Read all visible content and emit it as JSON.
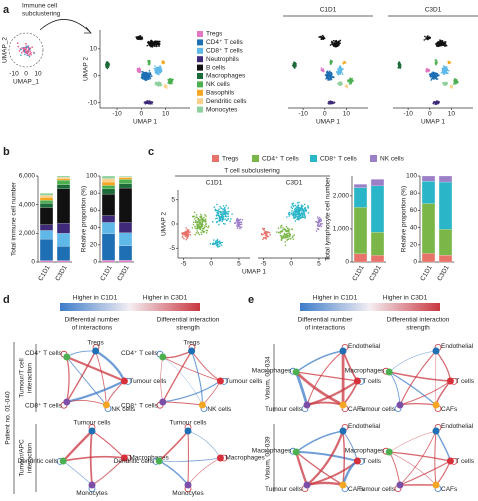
{
  "panel_labels": [
    "a",
    "b",
    "c",
    "d",
    "e"
  ],
  "panel_a": {
    "inset": {
      "title": [
        "Immune cell",
        "subclustering"
      ],
      "xlabel": "UMAP_1",
      "ylabel": "UMAP_2",
      "xticks": [
        -10,
        0,
        10
      ]
    },
    "umap": {
      "xlabel": "UMAP 1",
      "ylabel": "UMAP 2",
      "xlim": [
        -17,
        20
      ],
      "ylim": [
        -12,
        17
      ],
      "xticks": [
        -10,
        0,
        10
      ],
      "yticks": [
        -10,
        0,
        10
      ]
    },
    "split": [
      {
        "title": "C1D1",
        "xlabel": "UMAP 1",
        "xlim": [
          -17,
          20
        ],
        "ylim": [
          -12,
          17
        ],
        "xticks": [
          -10,
          0,
          10
        ]
      },
      {
        "title": "C3D1",
        "xlabel": "UMAP 1",
        "xlim": [
          -17,
          20
        ],
        "ylim": [
          -12,
          17
        ],
        "xticks": [
          -10,
          0,
          10
        ]
      }
    ]
  },
  "chart_data": [
    {
      "type": "bar",
      "stacked": true,
      "ylabel": "Total immune cell number",
      "categories": [
        "C1D1",
        "C3D1"
      ],
      "ylim": [
        0,
        6000
      ],
      "yticks": [
        0,
        {
          "value": 2000,
          "label": "2,000"
        },
        {
          "value": 4000,
          "label": "4,000"
        },
        {
          "value": 6000,
          "label": "6,000"
        }
      ],
      "series": [
        {
          "name": "Tregs",
          "color": "#e377c2",
          "values": [
            100,
            100
          ]
        },
        {
          "name": "CD4⁺ T cells",
          "color": "#1f6fb4",
          "values": [
            1500,
            1000
          ]
        },
        {
          "name": "CD8⁺ T cells",
          "color": "#5fb8e8",
          "values": [
            600,
            900
          ]
        },
        {
          "name": "Neutrophils",
          "color": "#3f2a7a",
          "values": [
            400,
            700
          ]
        },
        {
          "name": "B cells",
          "color": "#111111",
          "values": [
            1200,
            2400
          ]
        },
        {
          "name": "Macrophages",
          "color": "#1e6b3a",
          "values": [
            300,
            300
          ]
        },
        {
          "name": "NK cells",
          "color": "#4caf50",
          "values": [
            200,
            300
          ]
        },
        {
          "name": "Basophils",
          "color": "#f5a623",
          "values": [
            200,
            100
          ]
        },
        {
          "name": "Dendritic cells",
          "color": "#fbd08a",
          "values": [
            150,
            100
          ]
        },
        {
          "name": "Monocytes",
          "color": "#8fd19e",
          "values": [
            150,
            100
          ]
        }
      ]
    },
    {
      "type": "bar",
      "stacked": true,
      "ylabel": "Relative proportion (%)",
      "categories": [
        "C1D1",
        "C3D1"
      ],
      "ylim": [
        0,
        100
      ],
      "yticks": [
        0,
        20,
        40,
        60,
        80,
        100
      ],
      "series": [
        {
          "color": "#e377c2",
          "values": [
            2,
            2
          ]
        },
        {
          "color": "#1f6fb4",
          "values": [
            31,
            17
          ]
        },
        {
          "color": "#5fb8e8",
          "values": [
            13,
            15
          ]
        },
        {
          "color": "#3f2a7a",
          "values": [
            8,
            12
          ]
        },
        {
          "color": "#111111",
          "values": [
            25,
            40
          ]
        },
        {
          "color": "#1e6b3a",
          "values": [
            6,
            5
          ]
        },
        {
          "color": "#4caf50",
          "values": [
            4,
            5
          ]
        },
        {
          "color": "#f5a623",
          "values": [
            4,
            2
          ]
        },
        {
          "color": "#fbd08a",
          "values": [
            4,
            1
          ]
        },
        {
          "color": "#8fd19e",
          "values": [
            3,
            1
          ]
        }
      ]
    },
    {
      "type": "bar",
      "stacked": true,
      "ylabel": "Total lymphocyte cell number",
      "categories": [
        "C1D1",
        "C3D1"
      ],
      "ylim": [
        0,
        2600
      ],
      "yticks": [
        0,
        {
          "value": 1000,
          "label": "1,000"
        },
        {
          "value": 2000,
          "label": "2,000"
        }
      ],
      "series": [
        {
          "name": "Tregs",
          "color": "#e8736b",
          "values": [
            250,
            200
          ]
        },
        {
          "name": "CD4⁺ T cells",
          "color": "#7ab648",
          "values": [
            1400,
            700
          ]
        },
        {
          "name": "CD8⁺ T cells",
          "color": "#2ab5c8",
          "values": [
            600,
            1400
          ]
        },
        {
          "name": "NK cells",
          "color": "#9b7fc7",
          "values": [
            100,
            200
          ]
        }
      ]
    },
    {
      "type": "bar",
      "stacked": true,
      "ylabel": "Relative proportion (%)",
      "categories": [
        "C1D1",
        "C3D1"
      ],
      "ylim": [
        0,
        100
      ],
      "yticks": [
        0,
        20,
        40,
        60,
        80,
        100
      ],
      "series": [
        {
          "color": "#e8736b",
          "values": [
            10,
            8
          ]
        },
        {
          "color": "#7ab648",
          "values": [
            58,
            30
          ]
        },
        {
          "color": "#2ab5c8",
          "values": [
            26,
            55
          ]
        },
        {
          "color": "#9b7fc7",
          "values": [
            6,
            7
          ]
        }
      ]
    }
  ],
  "panel_c": {
    "title": "T cell subclustering",
    "xlabel": "UMAP 1",
    "ylabel": "UMAP 2",
    "xlim": [
      -6,
      7
    ],
    "ylim": [
      -7,
      7
    ],
    "umaps": [
      {
        "title": "C1D1",
        "xticks": [
          -5,
          0,
          5
        ],
        "yticks": [
          -5,
          0,
          5
        ]
      },
      {
        "title": "C3D1",
        "xticks": [
          -5,
          0,
          5
        ]
      }
    ]
  },
  "panel_d": {
    "scale": {
      "low": "Higher in C1D1",
      "high": "Higher in C3D1"
    },
    "col_headers": [
      [
        "Differential number",
        "of interactions"
      ],
      [
        "Differential interaction",
        "strength"
      ]
    ],
    "group": "Patient no. 01-040",
    "rows": [
      {
        "label": [
          "Tumour/T cell",
          "interaction"
        ],
        "nodes": [
          "CD4⁺ T cells",
          "Tregs",
          "Tumour cells",
          "NK cells",
          "CD8⁺ T cells"
        ]
      },
      {
        "label": [
          "Tumour/APC",
          "interaction"
        ],
        "nodes": [
          "Tumour cells",
          "Macrophages",
          "Monocytes",
          "Dendritic cells"
        ]
      }
    ]
  },
  "panel_e": {
    "scale": {
      "low": "Higher in C1D1",
      "high": "Higher in C3D1"
    },
    "col_headers": [
      [
        "Differential number",
        "of interactions"
      ],
      [
        "Differential interaction",
        "strength"
      ]
    ],
    "rows": [
      {
        "label": [
          "Visium, 01-034"
        ],
        "nodes": [
          "Macrophages",
          "Endothelial",
          "T cells",
          "Tumour cells",
          "CAFs"
        ]
      },
      {
        "label": [
          "Visium, 01-039"
        ],
        "nodes": [
          "Macrophages",
          "Endothelial",
          "T cells",
          "Tumour cells",
          "CAFs"
        ]
      }
    ]
  }
}
